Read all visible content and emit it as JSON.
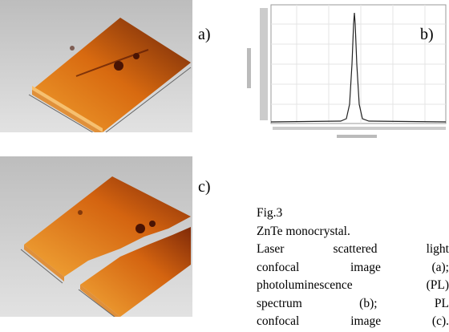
{
  "figure": {
    "panels": [
      {
        "label": "a)"
      },
      {
        "label": "b)"
      },
      {
        "label": "c)"
      }
    ],
    "caption": {
      "number": "Fig.3",
      "subject": "ZnTe monocrystal.",
      "lines": [
        "Laser scattered light",
        "confocal image (a);",
        "photoluminescence (PL)",
        "spectrum (b); PL",
        "confocal image (c)."
      ]
    }
  }
}
